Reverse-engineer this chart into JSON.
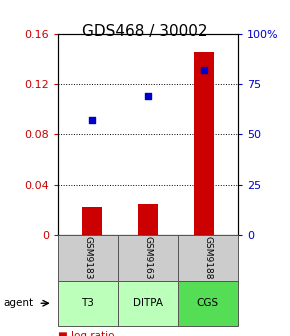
{
  "title": "GDS468 / 30002",
  "categories": [
    "T3",
    "DITPA",
    "CGS"
  ],
  "sample_ids": [
    "GSM9183",
    "GSM9163",
    "GSM9188"
  ],
  "log_ratio": [
    0.022,
    0.025,
    0.145
  ],
  "percentile_rank_pct": [
    57,
    69,
    82
  ],
  "left_ylim": [
    0,
    0.16
  ],
  "right_ylim": [
    0,
    100
  ],
  "left_yticks": [
    0,
    0.04,
    0.08,
    0.12,
    0.16
  ],
  "right_yticks": [
    0,
    25,
    50,
    75,
    100
  ],
  "right_yticklabels": [
    "0",
    "25",
    "50",
    "75",
    "100%"
  ],
  "bar_color": "#cc0000",
  "dot_color": "#0000cc",
  "sample_box_color": "#cccccc",
  "agent_box_color_light": "#bbffbb",
  "agent_box_color_dark": "#55dd55",
  "box_border_color": "#555555",
  "title_fontsize": 11,
  "tick_fontsize": 8,
  "legend_fontsize": 7.5,
  "bar_width": 0.35
}
